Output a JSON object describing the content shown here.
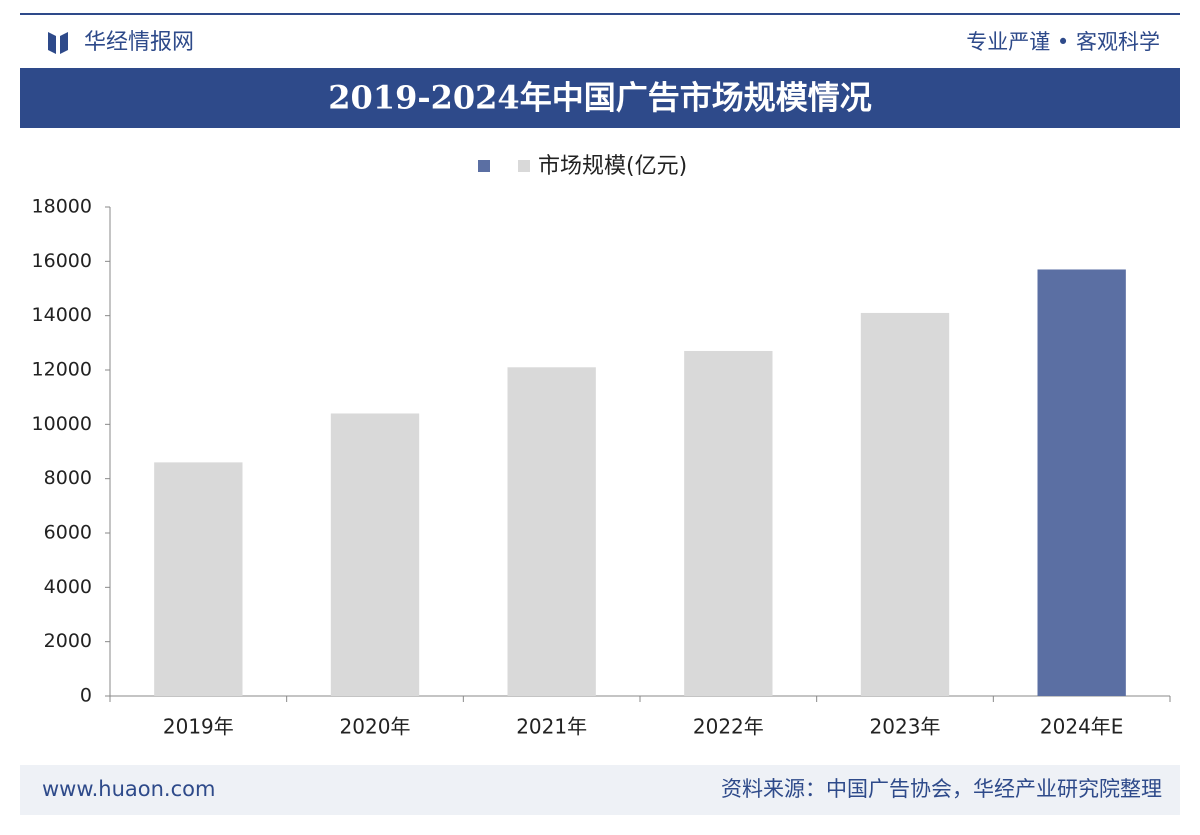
{
  "header": {
    "brand": "华经情报网",
    "slogan": "专业严谨 • 客观科学"
  },
  "chart_data": {
    "type": "bar",
    "title": "2019-2024年中国广告市场规模情况",
    "categories": [
      "2019年",
      "2020年",
      "2021年",
      "2022年",
      "2023年",
      "2024年E"
    ],
    "series": [
      {
        "name": "市场规模(亿元)",
        "values": [
          8600,
          10400,
          12100,
          12700,
          14100,
          15700
        ],
        "colors": [
          "#d9d9d9",
          "#d9d9d9",
          "#d9d9d9",
          "#d9d9d9",
          "#d9d9d9",
          "#5b6fa3"
        ]
      }
    ],
    "ylim": [
      0,
      18000
    ],
    "yticks": [
      0,
      2000,
      4000,
      6000,
      8000,
      10000,
      12000,
      14000,
      16000,
      18000
    ],
    "grid": false
  },
  "footer": {
    "website": "www.huaon.com",
    "source": "资料来源：中国广告协会，华经产业研究院整理"
  }
}
